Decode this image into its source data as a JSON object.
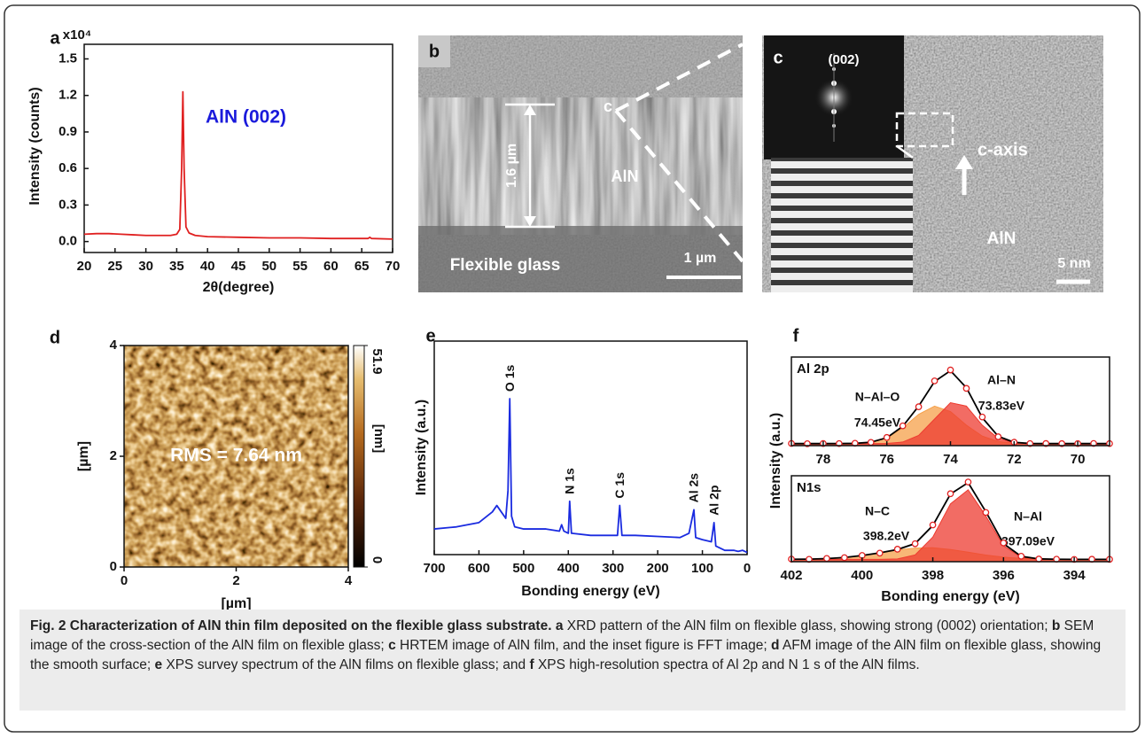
{
  "chart_data": [
    {
      "type": "line",
      "panel": "a",
      "multiplier": "x10⁴",
      "xlabel": "2θ(degree)",
      "ylabel": "Intensity (counts)",
      "xlim": [
        20,
        70
      ],
      "ylim": [
        -0.09,
        1.62
      ],
      "xticks": [
        20,
        25,
        30,
        35,
        40,
        45,
        50,
        55,
        60,
        65,
        70
      ],
      "yticks": [
        {
          "value": 0,
          "label": "0.0"
        },
        0.3,
        0.6,
        0.9,
        1.2,
        1.5
      ],
      "x": [
        20,
        22,
        24,
        26,
        28,
        30,
        32,
        34,
        35,
        35.5,
        35.8,
        36,
        36.2,
        36.5,
        37,
        38,
        40,
        45,
        50,
        55,
        60,
        65,
        66,
        66.3,
        66.6,
        70
      ],
      "series": [
        {
          "color": "#e02020",
          "values": [
            0.06,
            0.065,
            0.065,
            0.06,
            0.055,
            0.05,
            0.05,
            0.05,
            0.06,
            0.1,
            0.6,
            1.23,
            0.6,
            0.12,
            0.07,
            0.05,
            0.04,
            0.035,
            0.03,
            0.03,
            0.025,
            0.025,
            0.025,
            0.035,
            0.025,
            0.02
          ]
        }
      ],
      "annotation": {
        "text": "AlN (002)",
        "color": "#1a1adb"
      }
    },
    {
      "type": "line",
      "panel": "e",
      "xlabel": "Bonding energy (eV)",
      "ylabel": "Intensity (a.u.)",
      "xlim": [
        700,
        0
      ],
      "ylim": [
        0,
        1
      ],
      "xticks": [
        700,
        600,
        500,
        400,
        300,
        200,
        100,
        0
      ],
      "x": [
        700,
        650,
        600,
        570,
        560,
        550,
        540,
        535,
        531,
        527,
        520,
        500,
        450,
        420,
        415,
        410,
        400,
        397,
        393,
        350,
        300,
        290,
        285,
        280,
        250,
        200,
        150,
        130,
        119,
        115,
        100,
        80,
        74,
        70,
        50,
        30,
        20,
        10,
        0
      ],
      "series": [
        {
          "color": "#1a2be0",
          "values": [
            0.12,
            0.13,
            0.15,
            0.2,
            0.23,
            0.2,
            0.17,
            0.3,
            0.73,
            0.18,
            0.13,
            0.12,
            0.12,
            0.11,
            0.14,
            0.11,
            0.1,
            0.25,
            0.1,
            0.09,
            0.09,
            0.09,
            0.23,
            0.09,
            0.09,
            0.085,
            0.08,
            0.1,
            0.21,
            0.08,
            0.07,
            0.06,
            0.15,
            0.04,
            0.02,
            0.02,
            0.015,
            0.02,
            0.01
          ]
        }
      ],
      "peaks": [
        {
          "text": "O 1s",
          "x": 531
        },
        {
          "text": "N 1s",
          "x": 397
        },
        {
          "text": "C 1s",
          "x": 285
        },
        {
          "text": "Al 2s",
          "x": 119
        },
        {
          "text": "Al 2p",
          "x": 74
        }
      ]
    },
    {
      "type": "fit",
      "panel": "f",
      "title": "Al 2p",
      "ylabel": "Intensity (a.u.)",
      "xlim": [
        79,
        69
      ],
      "ylim": [
        0,
        1.3
      ],
      "xticks": [
        78,
        76,
        74,
        72,
        70
      ],
      "x": [
        79,
        78.5,
        78,
        77.5,
        77,
        76.5,
        76,
        75.5,
        75,
        74.5,
        74,
        73.5,
        73,
        72.5,
        72,
        71.5,
        71,
        70.5,
        70,
        69.5,
        69
      ],
      "series": [
        {
          "style": "area",
          "name": "N–Al–O",
          "label": "74.45eV",
          "color": "#f5a04a",
          "values": [
            0.03,
            0.03,
            0.03,
            0.031,
            0.033,
            0.05,
            0.114,
            0.26,
            0.46,
            0.58,
            0.5,
            0.3,
            0.14,
            0.06,
            0.037,
            0.031,
            0.03,
            0.03,
            0.03,
            0.03,
            0.03
          ]
        },
        {
          "style": "area",
          "name": "Al–N",
          "label": "73.83eV",
          "color": "#ee3b30",
          "values": [
            0.03,
            0.03,
            0.03,
            0.03,
            0.03,
            0.03,
            0.032,
            0.053,
            0.15,
            0.39,
            0.63,
            0.58,
            0.3,
            0.107,
            0.042,
            0.031,
            0.03,
            0.03,
            0.03,
            0.03,
            0.03
          ]
        },
        {
          "style": "line",
          "color": "#000000",
          "values": [
            0.03,
            0.03,
            0.03,
            0.031,
            0.033,
            0.05,
            0.116,
            0.283,
            0.58,
            0.94,
            1.1,
            0.85,
            0.41,
            0.137,
            0.049,
            0.032,
            0.03,
            0.03,
            0.03,
            0.03,
            0.03
          ]
        },
        {
          "style": "points",
          "color": "#e02020",
          "values": [
            0.032,
            0.028,
            0.031,
            0.03,
            0.035,
            0.048,
            0.12,
            0.29,
            0.57,
            0.95,
            1.11,
            0.84,
            0.42,
            0.13,
            0.05,
            0.03,
            0.031,
            0.029,
            0.03,
            0.032,
            0.03
          ]
        }
      ]
    },
    {
      "type": "fit",
      "title": "N1s",
      "xlabel": "Bonding energy (eV)",
      "xlim": [
        402,
        393
      ],
      "ylim": [
        0,
        1.1
      ],
      "xticks": [
        402,
        400,
        398,
        396,
        394
      ],
      "x": [
        402,
        401.5,
        401,
        400.5,
        400,
        399.5,
        399,
        398.5,
        398,
        397.5,
        397,
        396.5,
        396,
        395.5,
        395,
        394.5,
        394,
        393.5,
        393
      ],
      "series": [
        {
          "style": "area",
          "name": "N–C",
          "label": "398.2eV",
          "color": "#f5a04a",
          "values": [
            0.031,
            0.033,
            0.04,
            0.054,
            0.079,
            0.113,
            0.15,
            0.175,
            0.178,
            0.156,
            0.122,
            0.085,
            0.058,
            0.042,
            0.034,
            0.031,
            0.03,
            0.03,
            0.03
          ]
        },
        {
          "style": "area",
          "name": "N–Al",
          "label": "397.09eV",
          "color": "#ee3b30",
          "values": [
            0.03,
            0.03,
            0.03,
            0.03,
            0.03,
            0.03,
            0.036,
            0.087,
            0.315,
            0.74,
            0.92,
            0.585,
            0.203,
            0.057,
            0.032,
            0.03,
            0.03,
            0.03,
            0.03
          ]
        },
        {
          "style": "line",
          "color": "#000000",
          "values": [
            0.031,
            0.033,
            0.04,
            0.054,
            0.079,
            0.113,
            0.156,
            0.232,
            0.463,
            0.866,
            1.012,
            0.64,
            0.231,
            0.069,
            0.036,
            0.031,
            0.03,
            0.03,
            0.03
          ]
        },
        {
          "style": "points",
          "color": "#e02020",
          "values": [
            0.033,
            0.03,
            0.042,
            0.052,
            0.08,
            0.11,
            0.16,
            0.23,
            0.47,
            0.87,
            1.02,
            0.63,
            0.24,
            0.07,
            0.034,
            0.032,
            0.029,
            0.031,
            0.03
          ]
        }
      ]
    },
    {
      "type": "heatmap",
      "panel": "d",
      "xlabel": "[µm]",
      "ylabel": "[µm]",
      "xlim": [
        0,
        4
      ],
      "ylim": [
        0,
        4
      ],
      "xticks": [
        0,
        2,
        4
      ],
      "yticks": [
        0,
        2,
        4
      ],
      "colorbar": {
        "label": "[nm]",
        "lim": [
          0,
          51.9
        ],
        "ticks": [
          0,
          51.9
        ]
      },
      "annotation": "RMS = 7.64 nm"
    }
  ],
  "images": [
    {
      "panel": "b",
      "thickness": "1.6 µm",
      "film": "AlN",
      "substrate": "Flexible glass",
      "scale_bar": "1 µm",
      "zoom": "c"
    },
    {
      "panel": "c",
      "fft": "(002)",
      "axis": "c-axis",
      "film": "AlN",
      "scale_bar": "5 nm"
    }
  ],
  "caption": {
    "title": "Fig. 2 Characterization of AlN thin film deposited on the flexible glass substrate.",
    "parts": [
      {
        "label": "a",
        "text": "XRD pattern of the AlN film on flexible glass, showing strong (0002) orientation;"
      },
      {
        "label": "b",
        "text": "SEM image of the cross-section of the AlN film on flexible glass;"
      },
      {
        "label": "c",
        "text": "HRTEM image of AlN film, and the inset figure is FFT image;"
      },
      {
        "label": "d",
        "text": "AFM image of the AlN film on flexible glass, showing the smooth surface;"
      },
      {
        "label": "e",
        "text": "XPS survey spectrum of the AlN films on flexible glass; and"
      },
      {
        "label": "f",
        "text": "XPS high-resolution spectra of Al 2p and N 1 s of the AlN films."
      }
    ]
  }
}
